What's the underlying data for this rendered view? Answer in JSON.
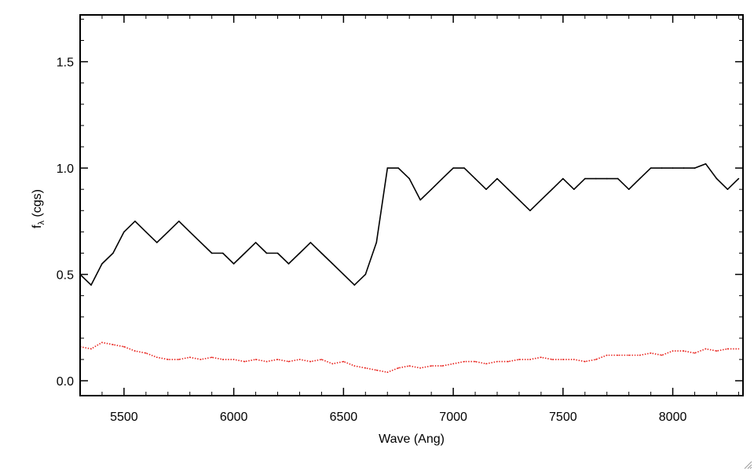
{
  "chart_data": {
    "type": "line",
    "title": "",
    "xlabel": "Wave (Ang)",
    "ylabel_main": "f",
    "ylabel_sub": "λ",
    "ylabel_unit": "(cgs)",
    "xlim": [
      5300,
      8320
    ],
    "ylim": [
      -0.07,
      1.72
    ],
    "x_ticks": [
      5500,
      6000,
      6500,
      7000,
      7500,
      8000
    ],
    "x_tick_labels": [
      "5500",
      "6000",
      "6500",
      "7000",
      "7500",
      "8000"
    ],
    "y_ticks": [
      0.0,
      0.5,
      1.0,
      1.5
    ],
    "y_tick_labels": [
      "0.0",
      "0.5",
      "1.0",
      "1.5"
    ],
    "grid": false,
    "legend": "none",
    "series": [
      {
        "style": "solid",
        "color": "#000000",
        "x": [
          5300,
          5350,
          5400,
          5450,
          5500,
          5550,
          5600,
          5650,
          5700,
          5750,
          5800,
          5850,
          5900,
          5950,
          6000,
          6050,
          6100,
          6150,
          6200,
          6250,
          6300,
          6350,
          6400,
          6450,
          6500,
          6550,
          6600,
          6650,
          6700,
          6750,
          6800,
          6850,
          6900,
          6950,
          7000,
          7050,
          7100,
          7150,
          7200,
          7250,
          7300,
          7350,
          7400,
          7450,
          7500,
          7550,
          7600,
          7650,
          7700,
          7750,
          7800,
          7850,
          7900,
          7950,
          8000,
          8050,
          8100,
          8150,
          8200,
          8250,
          8300
        ],
        "y": [
          0.5,
          0.45,
          0.55,
          0.6,
          0.7,
          0.75,
          0.7,
          0.65,
          0.7,
          0.75,
          0.7,
          0.65,
          0.6,
          0.6,
          0.55,
          0.6,
          0.65,
          0.6,
          0.6,
          0.55,
          0.6,
          0.65,
          0.6,
          0.55,
          0.5,
          0.45,
          0.5,
          0.65,
          1.0,
          1.0,
          0.95,
          0.85,
          0.9,
          0.95,
          1.0,
          1.0,
          0.95,
          0.9,
          0.95,
          0.9,
          0.85,
          0.8,
          0.85,
          0.9,
          0.95,
          0.9,
          0.95,
          0.95,
          0.95,
          0.95,
          0.9,
          0.95,
          1.0,
          1.0,
          1.0,
          1.0,
          1.0,
          1.02,
          0.95,
          0.9,
          0.95
        ]
      },
      {
        "style": "dotted",
        "color": "#e8221c",
        "x": [
          5300,
          5350,
          5400,
          5450,
          5500,
          5550,
          5600,
          5650,
          5700,
          5750,
          5800,
          5850,
          5900,
          5950,
          6000,
          6050,
          6100,
          6150,
          6200,
          6250,
          6300,
          6350,
          6400,
          6450,
          6500,
          6550,
          6600,
          6650,
          6700,
          6750,
          6800,
          6850,
          6900,
          6950,
          7000,
          7050,
          7100,
          7150,
          7200,
          7250,
          7300,
          7350,
          7400,
          7450,
          7500,
          7550,
          7600,
          7650,
          7700,
          7750,
          7800,
          7850,
          7900,
          7950,
          8000,
          8050,
          8100,
          8150,
          8200,
          8250,
          8300
        ],
        "y": [
          0.16,
          0.15,
          0.18,
          0.17,
          0.16,
          0.14,
          0.13,
          0.11,
          0.1,
          0.1,
          0.11,
          0.1,
          0.11,
          0.1,
          0.1,
          0.09,
          0.1,
          0.09,
          0.1,
          0.09,
          0.1,
          0.09,
          0.1,
          0.08,
          0.09,
          0.07,
          0.06,
          0.05,
          0.04,
          0.06,
          0.07,
          0.06,
          0.07,
          0.07,
          0.08,
          0.09,
          0.09,
          0.08,
          0.09,
          0.09,
          0.1,
          0.1,
          0.11,
          0.1,
          0.1,
          0.1,
          0.09,
          0.1,
          0.12,
          0.12,
          0.12,
          0.12,
          0.13,
          0.12,
          0.14,
          0.14,
          0.13,
          0.15,
          0.14,
          0.15,
          0.15
        ]
      }
    ]
  }
}
